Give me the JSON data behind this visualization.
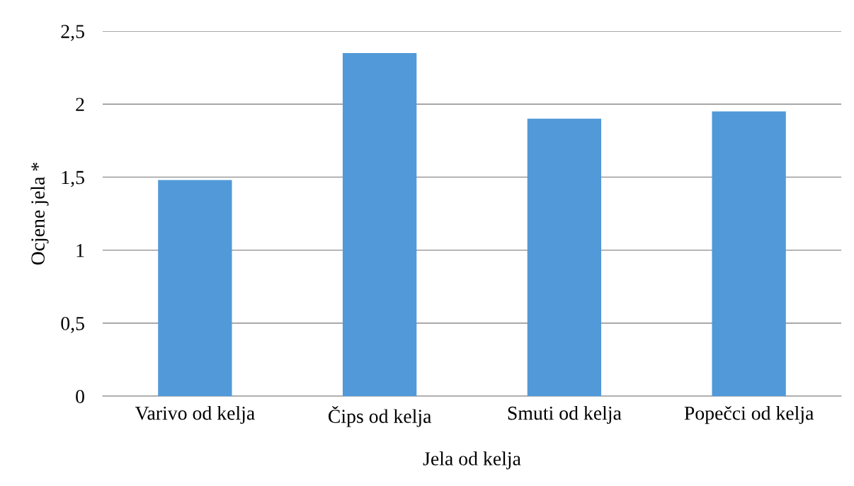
{
  "chart_data": {
    "type": "bar",
    "xlabel": "Jela od kelja",
    "ylabel": "Ocjene jela *",
    "categories": [
      "Varivo od kelja",
      "Čips od kelja",
      "Smuti od kelja",
      "Popečci od kelja"
    ],
    "values": [
      1.48,
      2.35,
      1.9,
      1.95
    ],
    "color": "#5199d9",
    "ylim": [
      0,
      2.5
    ],
    "yticks": [
      0,
      {
        "value": 0.5,
        "label": "0,5"
      },
      1,
      {
        "value": 1.5,
        "label": "1,5"
      },
      2,
      {
        "value": 2.5,
        "label": "2,5"
      }
    ],
    "grid": "y",
    "legend": false
  }
}
